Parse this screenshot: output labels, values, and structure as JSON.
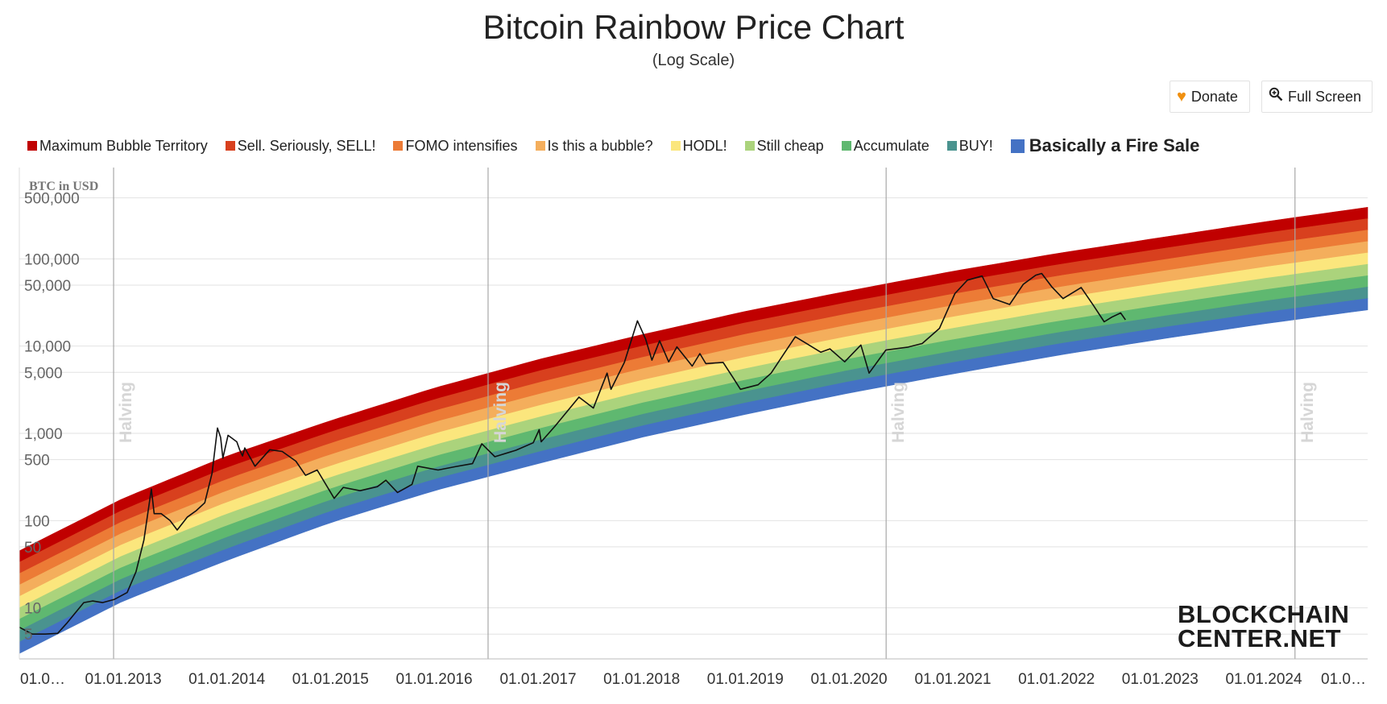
{
  "header": {
    "title": "Bitcoin Rainbow Price Chart",
    "subtitle": "(Log Scale)"
  },
  "toolbar": {
    "donate_label": "Donate",
    "donate_icon": "heart-icon",
    "fullscreen_label": "Full Screen",
    "fullscreen_icon": "zoom-in-icon"
  },
  "logo": {
    "line1": "BLOCKCHAIN",
    "line2": "CENTER.NET"
  },
  "chart_data": {
    "type": "line",
    "title": "Bitcoin Rainbow Price Chart",
    "subtitle": "(Log Scale)",
    "ylabel": "BTC in USD",
    "yscale": "log",
    "ylim": [
      2.6,
      900000
    ],
    "xlim": [
      "2012-01-01",
      "2025-01-01"
    ],
    "grid": true,
    "legend_position": "top",
    "y_ticks": [
      {
        "value": 5,
        "label": "5"
      },
      {
        "value": 10,
        "label": "10"
      },
      {
        "value": 50,
        "label": "50"
      },
      {
        "value": 100,
        "label": "100"
      },
      {
        "value": 500,
        "label": "500"
      },
      {
        "value": 1000,
        "label": "1,000"
      },
      {
        "value": 5000,
        "label": "5,000"
      },
      {
        "value": 10000,
        "label": "10,000"
      },
      {
        "value": 50000,
        "label": "50,000"
      },
      {
        "value": 100000,
        "label": "100,000"
      },
      {
        "value": 500000,
        "label": "500,000"
      }
    ],
    "x_ticks": [
      {
        "date": "2012-01-01",
        "label": "01.0…"
      },
      {
        "date": "2013-01-01",
        "label": "01.01.2013"
      },
      {
        "date": "2014-01-01",
        "label": "01.01.2014"
      },
      {
        "date": "2015-01-01",
        "label": "01.01.2015"
      },
      {
        "date": "2016-01-01",
        "label": "01.01.2016"
      },
      {
        "date": "2017-01-01",
        "label": "01.01.2017"
      },
      {
        "date": "2018-01-01",
        "label": "01.01.2018"
      },
      {
        "date": "2019-01-01",
        "label": "01.01.2019"
      },
      {
        "date": "2020-01-01",
        "label": "01.01.2020"
      },
      {
        "date": "2021-01-01",
        "label": "01.01.2021"
      },
      {
        "date": "2022-01-01",
        "label": "01.01.2022"
      },
      {
        "date": "2023-01-01",
        "label": "01.01.2023"
      },
      {
        "date": "2024-01-01",
        "label": "01.01.2024"
      },
      {
        "date": "2025-01-01",
        "label": "01.0…"
      }
    ],
    "halvings": [
      {
        "date": "2012-11-28",
        "label": "Halving"
      },
      {
        "date": "2016-07-09",
        "label": "Halving"
      },
      {
        "date": "2020-05-11",
        "label": "Halving"
      },
      {
        "date": "2024-04-20",
        "label": "Halving"
      }
    ],
    "bands": [
      {
        "name": "Maximum Bubble Territory",
        "color": "#c00000"
      },
      {
        "name": "Sell. Seriously, SELL!",
        "color": "#d8401e"
      },
      {
        "name": "FOMO intensifies",
        "color": "#ec7b36"
      },
      {
        "name": "Is this a bubble?",
        "color": "#f4ae5c"
      },
      {
        "name": "HODL!",
        "color": "#fbe67d"
      },
      {
        "name": "Still cheap",
        "color": "#abd37c"
      },
      {
        "name": "Accumulate",
        "color": "#5fb870"
      },
      {
        "name": "BUY!",
        "color": "#4a938f"
      },
      {
        "name": "Basically a Fire Sale",
        "color": "#4472c4"
      }
    ],
    "band_bounds_at": [
      {
        "date": "2012-01-01",
        "lower": 3.0,
        "upper": 45
      },
      {
        "date": "2013-01-01",
        "lower": 12,
        "upper": 180
      },
      {
        "date": "2014-01-01",
        "lower": 35,
        "upper": 550
      },
      {
        "date": "2015-01-01",
        "lower": 95,
        "upper": 1400
      },
      {
        "date": "2016-01-01",
        "lower": 220,
        "upper": 3300
      },
      {
        "date": "2017-01-01",
        "lower": 450,
        "upper": 7000
      },
      {
        "date": "2018-01-01",
        "lower": 900,
        "upper": 13500
      },
      {
        "date": "2019-01-01",
        "lower": 1650,
        "upper": 25000
      },
      {
        "date": "2020-01-01",
        "lower": 2900,
        "upper": 43000
      },
      {
        "date": "2021-01-01",
        "lower": 4800,
        "upper": 72000
      },
      {
        "date": "2022-01-01",
        "lower": 7800,
        "upper": 115000
      },
      {
        "date": "2023-01-01",
        "lower": 12000,
        "upper": 175000
      },
      {
        "date": "2024-01-01",
        "lower": 18000,
        "upper": 265000
      },
      {
        "date": "2025-01-01",
        "lower": 26000,
        "upper": 390000
      }
    ],
    "series": [
      {
        "color": "#111111",
        "points": [
          [
            "2012-01-01",
            6.0
          ],
          [
            "2012-02-15",
            5.0
          ],
          [
            "2012-04-01",
            5.0
          ],
          [
            "2012-05-15",
            5.1
          ],
          [
            "2012-06-15",
            6.6
          ],
          [
            "2012-08-15",
            11.5
          ],
          [
            "2012-09-15",
            12.0
          ],
          [
            "2012-10-20",
            11.5
          ],
          [
            "2012-12-01",
            12.5
          ],
          [
            "2013-01-15",
            15.0
          ],
          [
            "2013-02-15",
            26.0
          ],
          [
            "2013-03-15",
            60.0
          ],
          [
            "2013-04-10",
            230.0
          ],
          [
            "2013-04-20",
            120.0
          ],
          [
            "2013-05-15",
            120.0
          ],
          [
            "2013-06-15",
            100.0
          ],
          [
            "2013-07-10",
            78.0
          ],
          [
            "2013-08-15",
            110.0
          ],
          [
            "2013-09-15",
            130.0
          ],
          [
            "2013-10-15",
            160.0
          ],
          [
            "2013-11-10",
            350.0
          ],
          [
            "2013-11-29",
            1150.0
          ],
          [
            "2013-12-10",
            900.0
          ],
          [
            "2013-12-18",
            520.0
          ],
          [
            "2014-01-05",
            950.0
          ],
          [
            "2014-02-05",
            800.0
          ],
          [
            "2014-02-15",
            650.0
          ],
          [
            "2014-02-25",
            550.0
          ],
          [
            "2014-03-05",
            680.0
          ],
          [
            "2014-04-10",
            420.0
          ],
          [
            "2014-06-01",
            650.0
          ],
          [
            "2014-07-15",
            620.0
          ],
          [
            "2014-09-01",
            480.0
          ],
          [
            "2014-10-05",
            330.0
          ],
          [
            "2014-11-15",
            380.0
          ],
          [
            "2015-01-14",
            180.0
          ],
          [
            "2015-02-15",
            240.0
          ],
          [
            "2015-04-15",
            220.0
          ],
          [
            "2015-06-15",
            245.0
          ],
          [
            "2015-07-15",
            290.0
          ],
          [
            "2015-08-25",
            210.0
          ],
          [
            "2015-10-15",
            260.0
          ],
          [
            "2015-11-04",
            420.0
          ],
          [
            "2016-01-15",
            380.0
          ],
          [
            "2016-03-15",
            415.0
          ],
          [
            "2016-05-15",
            450.0
          ],
          [
            "2016-06-17",
            760.0
          ],
          [
            "2016-08-02",
            540.0
          ],
          [
            "2016-10-15",
            640.0
          ],
          [
            "2016-12-15",
            780.0
          ],
          [
            "2017-01-05",
            1100.0
          ],
          [
            "2017-01-12",
            800.0
          ],
          [
            "2017-03-01",
            1200.0
          ],
          [
            "2017-05-25",
            2600.0
          ],
          [
            "2017-07-15",
            1950.0
          ],
          [
            "2017-09-01",
            4900.0
          ],
          [
            "2017-09-15",
            3200.0
          ],
          [
            "2017-11-01",
            6500.0
          ],
          [
            "2017-12-17",
            19500.0
          ],
          [
            "2018-01-15",
            12000.0
          ],
          [
            "2018-02-06",
            6900.0
          ],
          [
            "2018-03-05",
            11500.0
          ],
          [
            "2018-04-06",
            6600.0
          ],
          [
            "2018-05-05",
            9800.0
          ],
          [
            "2018-06-28",
            5900.0
          ],
          [
            "2018-07-25",
            8200.0
          ],
          [
            "2018-08-15",
            6300.0
          ],
          [
            "2018-10-15",
            6500.0
          ],
          [
            "2018-11-20",
            4300.0
          ],
          [
            "2018-12-15",
            3200.0
          ],
          [
            "2019-02-15",
            3600.0
          ],
          [
            "2019-04-02",
            4900.0
          ],
          [
            "2019-05-15",
            8000.0
          ],
          [
            "2019-06-26",
            12800.0
          ],
          [
            "2019-08-15",
            10200.0
          ],
          [
            "2019-09-24",
            8500.0
          ],
          [
            "2019-10-26",
            9300.0
          ],
          [
            "2019-12-17",
            6600.0
          ],
          [
            "2020-02-12",
            10300.0
          ],
          [
            "2020-03-12",
            4900.0
          ],
          [
            "2020-05-10",
            9000.0
          ],
          [
            "2020-07-25",
            9700.0
          ],
          [
            "2020-09-15",
            10700.0
          ],
          [
            "2020-11-15",
            16000.0
          ],
          [
            "2021-01-08",
            40000.0
          ],
          [
            "2021-02-21",
            57000.0
          ],
          [
            "2021-04-14",
            63500.0
          ],
          [
            "2021-05-23",
            35000.0
          ],
          [
            "2021-07-20",
            30000.0
          ],
          [
            "2021-09-06",
            51000.0
          ],
          [
            "2021-10-20",
            65000.0
          ],
          [
            "2021-11-10",
            68000.0
          ],
          [
            "2021-12-15",
            48000.0
          ],
          [
            "2022-01-24",
            35000.0
          ],
          [
            "2022-03-29",
            47000.0
          ],
          [
            "2022-05-12",
            29000.0
          ],
          [
            "2022-06-18",
            19000.0
          ],
          [
            "2022-07-15",
            21500.0
          ],
          [
            "2022-08-15",
            24000.0
          ],
          [
            "2022-09-01",
            20000.0
          ]
        ]
      }
    ]
  }
}
